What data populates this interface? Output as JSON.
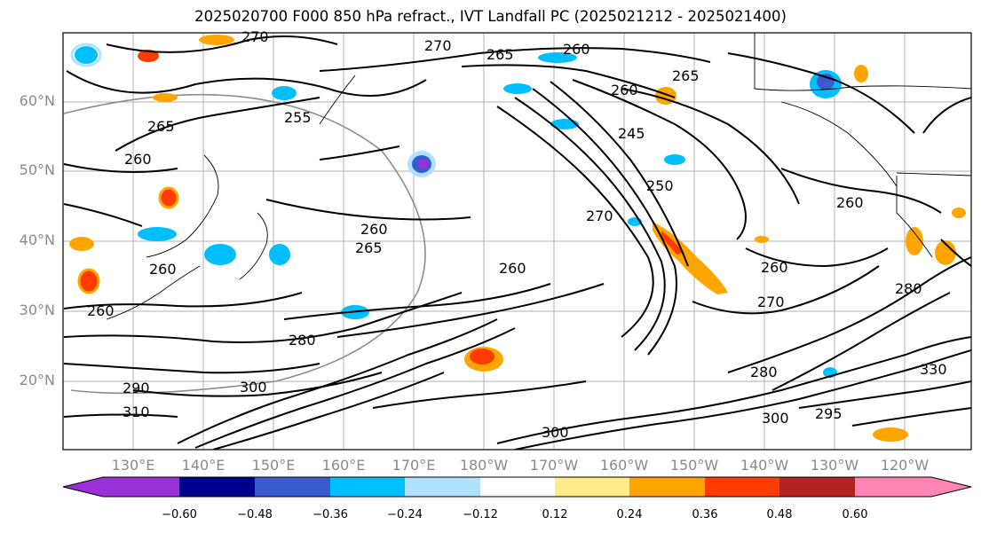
{
  "title": "2025020700 F000 850 hPa refract., IVT Landfall PC (2025021212 - 2025021400)",
  "lat_labels": [
    "60°N",
    "50°N",
    "40°N",
    "30°N",
    "20°N"
  ],
  "lon_labels": [
    "130°E",
    "140°E",
    "150°E",
    "160°E",
    "170°E",
    "180°W",
    "170°W",
    "160°W",
    "150°W",
    "140°W",
    "130°W",
    "120°W"
  ],
  "contour_labels": [
    "270",
    "270",
    "265",
    "260",
    "265",
    "260",
    "255",
    "265",
    "260",
    "245",
    "260",
    "265",
    "270",
    "260",
    "250",
    "270",
    "260",
    "260",
    "260",
    "280",
    "280",
    "260",
    "290",
    "300",
    "310",
    "300",
    "295",
    "280",
    "300",
    "330"
  ],
  "colorbar": {
    "ticks": [
      "−0.60",
      "−0.48",
      "−0.36",
      "−0.24",
      "−0.12",
      "0.12",
      "0.24",
      "0.36",
      "0.48",
      "0.60"
    ],
    "colors": [
      "#9b30d9",
      "#00008b",
      "#3a5bd0",
      "#00bfff",
      "#b0e2ff",
      "#ffffff",
      "#ffeb8a",
      "#ffa500",
      "#ff3c00",
      "#b22222",
      "#ff85b5"
    ]
  }
}
